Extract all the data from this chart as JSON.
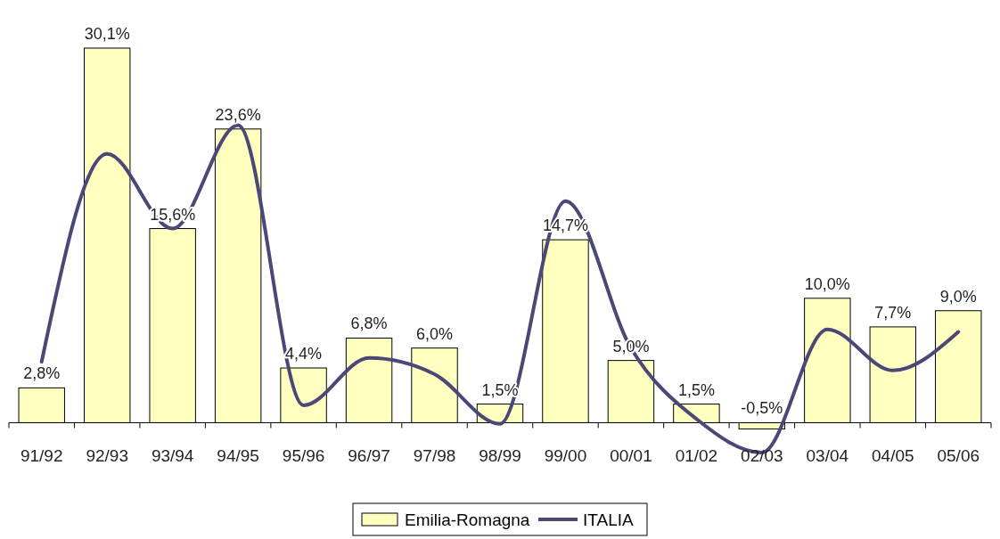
{
  "chart_data": {
    "type": "bar",
    "categories": [
      "91/92",
      "92/93",
      "93/94",
      "94/95",
      "95/96",
      "96/97",
      "97/98",
      "98/99",
      "99/00",
      "00/01",
      "01/02",
      "02/03",
      "03/04",
      "04/05",
      "05/06"
    ],
    "series": [
      {
        "name": "Emilia-Romagna",
        "color": "#ffffc0",
        "values": [
          2.8,
          30.1,
          15.6,
          23.6,
          4.4,
          6.8,
          6.0,
          1.5,
          14.7,
          5.0,
          1.5,
          -0.5,
          10.0,
          7.7,
          9.0
        ],
        "value_labels": [
          "2,8%",
          "30,1%",
          "15,6%",
          "23,6%",
          "4,4%",
          "6,8%",
          "6,0%",
          "1,5%",
          "14,7%",
          "5,0%",
          "1,5%",
          "-0,5%",
          "10,0%",
          "7,7%",
          "9,0%"
        ]
      },
      {
        "name": "ITALIA",
        "type": "line",
        "color": "#4b4878",
        "values": [
          4.9,
          21.6,
          15.6,
          23.9,
          1.4,
          5.2,
          3.9,
          -0.1,
          17.8,
          6.0,
          0.3,
          -2.4,
          7.5,
          4.2,
          7.3
        ]
      }
    ],
    "legend": "bottom",
    "grid": false,
    "marker": "none",
    "line_style": "solid"
  }
}
